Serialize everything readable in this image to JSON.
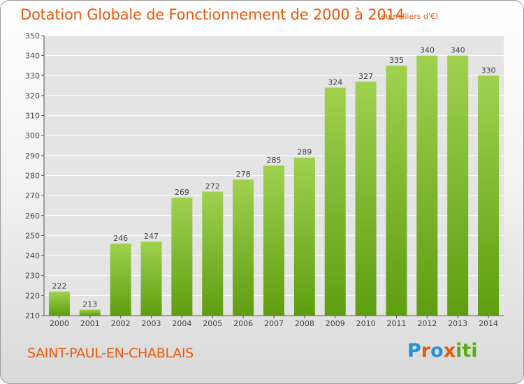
{
  "header": {
    "title": "Dotation Globale de Fonctionnement de 2000 à 2014",
    "unit": "(en milliers d'€)"
  },
  "footer": {
    "commune": "SAINT-PAUL-EN-CHABLAIS",
    "logo_letters": [
      "P",
      "r",
      "o",
      "x",
      "i",
      "t",
      "i"
    ],
    "logo_colors": [
      "#2a8fd6",
      "#e8590c",
      "#2a8fd6",
      "#e8590c",
      "#5aaa1c",
      "#5aaa1c",
      "#5aaa1c"
    ]
  },
  "chart_data": {
    "type": "bar",
    "title": "Dotation Globale de Fonctionnement de 2000 à 2014",
    "subtitle": "(en milliers d'€)",
    "categories": [
      "2000",
      "2001",
      "2002",
      "2003",
      "2004",
      "2005",
      "2006",
      "2007",
      "2008",
      "2009",
      "2010",
      "2011",
      "2012",
      "2013",
      "2014"
    ],
    "values": [
      222,
      213,
      246,
      247,
      269,
      272,
      278,
      285,
      289,
      324,
      327,
      335,
      340,
      340,
      330
    ],
    "data_labels": [
      "222",
      "213",
      "246",
      "247",
      "269",
      "272",
      "278",
      "285",
      "289",
      "324",
      "327",
      "335",
      "340",
      "340",
      "330"
    ],
    "ylim": [
      210,
      350
    ],
    "yticks": [
      210,
      220,
      230,
      240,
      250,
      260,
      270,
      280,
      290,
      300,
      310,
      320,
      330,
      340,
      350
    ],
    "grid": true,
    "colors": {
      "bar_top": "#9fd14f",
      "bar_bottom": "#5e9e10",
      "grid": "#ffffff",
      "axis": "#555555"
    }
  }
}
